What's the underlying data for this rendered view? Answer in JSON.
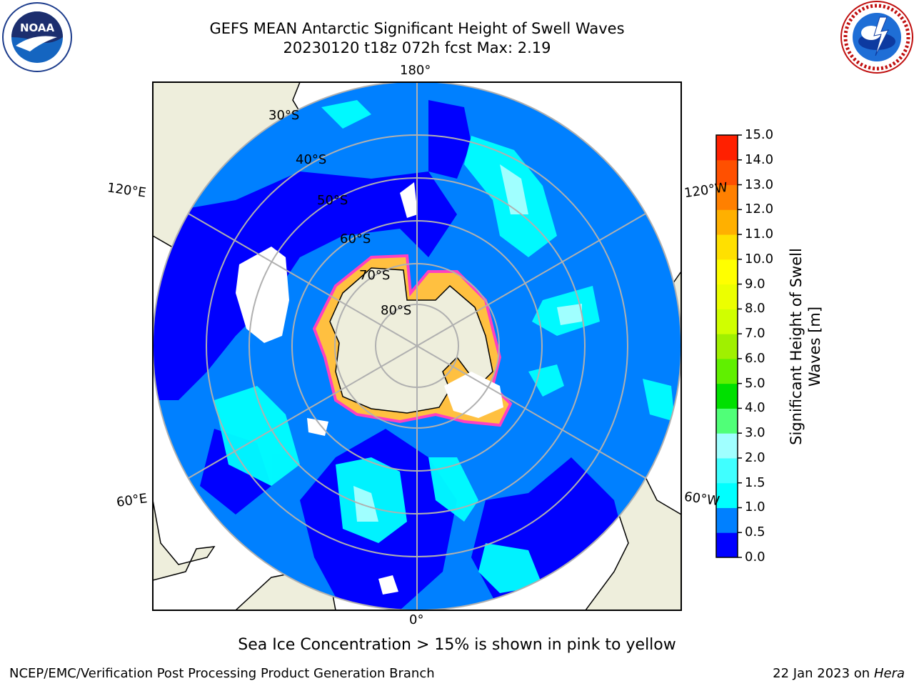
{
  "title_line1": "GEFS MEAN Antarctic Significant Height of Swell Waves",
  "title_line2": "20230120 t18z 072h fcst   Max: 2.19",
  "logos": {
    "left": "noaa-logo",
    "right": "national-weather-service-logo"
  },
  "map": {
    "projection": "south-polar-stereographic",
    "lat_labels": [
      "30°S",
      "40°S",
      "50°S",
      "60°S",
      "70°S",
      "80°S"
    ],
    "lon_labels": {
      "top": "180°",
      "bottom": "0°",
      "left_upper": "120°E",
      "right_upper": "120°W",
      "left_lower": "60°E",
      "right_lower": "60°W"
    },
    "colors": {
      "land": "#eeeedc",
      "ice_edge": "#ff40c0",
      "ice_inner": "#ffc040",
      "no_data": "#ffffff"
    }
  },
  "colorbar": {
    "title": "Significant Height of Swell Waves [m]",
    "ticks": [
      "0.0",
      "0.5",
      "1.0",
      "1.5",
      "2.0",
      "3.0",
      "4.0",
      "5.0",
      "6.0",
      "7.0",
      "8.0",
      "9.0",
      "10.0",
      "11.0",
      "12.0",
      "13.0",
      "14.0",
      "15.0"
    ],
    "colors": [
      "#0000ff",
      "#0080ff",
      "#00ffff",
      "#40ffff",
      "#a0ffff",
      "#50ff78",
      "#00e000",
      "#60f000",
      "#a0f000",
      "#d0ff00",
      "#ecff00",
      "#ffff00",
      "#ffe000",
      "#ffb000",
      "#ff8000",
      "#ff5000",
      "#ff2000"
    ]
  },
  "ice_note": "Sea Ice Concentration > 15% is shown in pink to yellow",
  "footer_left": "NCEP/EMC/Verification Post Processing Product Generation Branch",
  "footer_right_date": "22 Jan 2023 on",
  "footer_right_host": "Hera"
}
